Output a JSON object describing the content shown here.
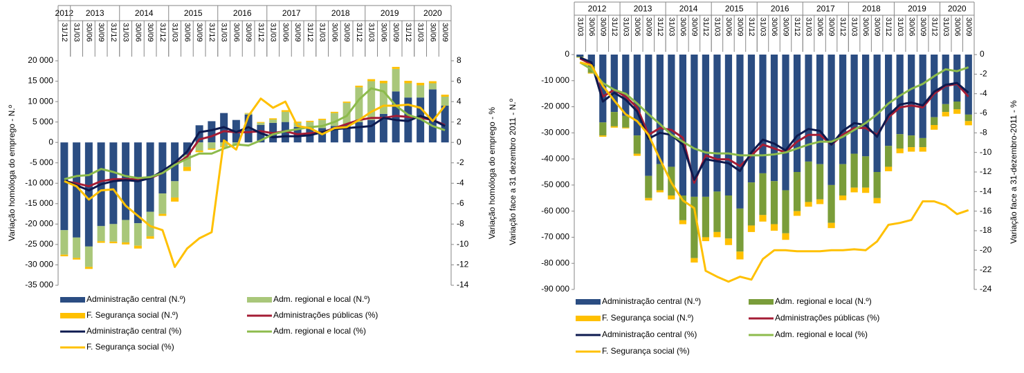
{
  "chart_data": [
    {
      "type": "combo",
      "y_label": "Variação homóloga do emprego - N.º",
      "y2_label": "Variação homóloga do emprego - %",
      "categories": [
        "31/12",
        "31/03",
        "30/06",
        "30/09",
        "31/12",
        "31/03",
        "30/06",
        "30/09",
        "31/12",
        "31/03",
        "30/06",
        "30/09",
        "31/12",
        "31/03",
        "30/06",
        "30/09",
        "31/12",
        "31/03",
        "30/06",
        "30/09",
        "31/12",
        "31/03",
        "30/06",
        "30/09",
        "31/12",
        "31/03",
        "30/06",
        "30/09",
        "31/12",
        "31/03",
        "30/06",
        "30/09"
      ],
      "category_years": [
        "2012",
        "2013",
        null,
        null,
        null,
        "2014",
        null,
        null,
        null,
        "2015",
        null,
        null,
        null,
        "2016",
        null,
        null,
        null,
        "2017",
        null,
        null,
        null,
        "2018",
        null,
        null,
        null,
        "2019",
        null,
        null,
        null,
        "2020",
        null,
        null
      ],
      "ylim": [
        -35000,
        20000
      ],
      "yticks": [
        {
          "value": -35000,
          "label": "-35 000"
        },
        {
          "value": -30000,
          "label": "-30 000"
        },
        {
          "value": -25000,
          "label": "-25 000"
        },
        {
          "value": -20000,
          "label": "-20 000"
        },
        {
          "value": -15000,
          "label": "-15 000"
        },
        {
          "value": -10000,
          "label": "-10 000"
        },
        {
          "value": -5000,
          "label": "-5 000"
        },
        0,
        {
          "value": 5000,
          "label": "5 000"
        },
        {
          "value": 10000,
          "label": "10 000"
        },
        {
          "value": 15000,
          "label": "15 000"
        },
        {
          "value": 20000,
          "label": "20 000"
        }
      ],
      "y2lim": [
        -14,
        8
      ],
      "y2ticks": [
        -14,
        -12,
        -10,
        -8,
        -6,
        -4,
        -2,
        0,
        2,
        4,
        6,
        8
      ],
      "series": [
        {
          "name": "Administração central (N.º)",
          "type": "bar",
          "color": "#2b4d82",
          "values": [
            -21500,
            -23300,
            -25500,
            -20500,
            -20000,
            -19000,
            -19800,
            -17000,
            -12500,
            -9500,
            -3000,
            4200,
            5200,
            7200,
            5500,
            6800,
            4300,
            4800,
            5000,
            3800,
            3500,
            3500,
            4000,
            4500,
            5000,
            5500,
            7000,
            12500,
            11000,
            11000,
            13000,
            9000
          ]
        },
        {
          "name": "Adm. regional e local (N.º)",
          "type": "bar",
          "color": "#a9c77a",
          "values": [
            -6000,
            -5000,
            -5000,
            -3700,
            -4300,
            -5500,
            -5500,
            -6000,
            -5000,
            -4000,
            -3000,
            -2000,
            -1500,
            -1000,
            -500,
            300,
            500,
            800,
            2500,
            1000,
            1500,
            2000,
            3200,
            5200,
            8500,
            9500,
            7500,
            5500,
            3500,
            3000,
            1500,
            2200
          ]
        },
        {
          "name": "F. Segurança social  (N.º)",
          "type": "bar",
          "color": "#ffc000",
          "values": [
            -400,
            -400,
            -500,
            -400,
            -400,
            -500,
            -700,
            -600,
            -500,
            -1000,
            -1000,
            -400,
            -300,
            -200,
            -100,
            100,
            200,
            300,
            400,
            300,
            300,
            300,
            300,
            300,
            400,
            500,
            600,
            500,
            600,
            600,
            500,
            500
          ]
        },
        {
          "name": "Administrações públicas (%)",
          "type": "line",
          "axis": "y2",
          "color": "#a41c34",
          "values": [
            -3.8,
            -4.0,
            -4.3,
            -3.8,
            -3.6,
            -3.6,
            -3.6,
            -3.5,
            -3.0,
            -2.2,
            -1.4,
            0.3,
            0.6,
            1.1,
            1.0,
            1.0,
            1.1,
            0.9,
            1.1,
            0.8,
            0.9,
            1.0,
            1.4,
            1.8,
            2.2,
            2.4,
            2.4,
            2.6,
            2.5,
            2.4,
            2.2,
            1.7
          ]
        },
        {
          "name": "Administração central  (%)",
          "type": "line",
          "axis": "y2",
          "color": "#0d1a4f",
          "values": [
            -3.7,
            -4.2,
            -4.7,
            -4.1,
            -3.8,
            -3.7,
            -3.8,
            -3.5,
            -2.8,
            -2.0,
            -0.9,
            1.0,
            1.2,
            1.5,
            1.0,
            1.5,
            0.9,
            0.5,
            0.6,
            0.6,
            0.7,
            1.0,
            1.3,
            1.4,
            1.5,
            1.6,
            2.4,
            2.2,
            2.1,
            2.6,
            2.2,
            1.6
          ]
        },
        {
          "name": "Adm. regional e local (%)",
          "type": "line",
          "axis": "y2",
          "color": "#8dbb4c",
          "values": [
            -3.6,
            -3.3,
            -3.2,
            -2.6,
            -2.9,
            -3.3,
            -3.5,
            -3.4,
            -3.0,
            -2.2,
            -1.6,
            -1.1,
            -1.1,
            -0.6,
            -0.2,
            -0.3,
            0.2,
            0.8,
            1.1,
            1.3,
            1.5,
            1.6,
            2.0,
            2.6,
            4.2,
            5.3,
            5.0,
            3.6,
            2.7,
            2.3,
            1.6,
            1.2
          ]
        },
        {
          "name": "F. Segurança social  (%)",
          "type": "line",
          "axis": "y2",
          "color": "#ffc000",
          "values": [
            -3.8,
            -4.3,
            -5.6,
            -4.7,
            -4.6,
            -6.2,
            -7.2,
            -8.2,
            -8.6,
            -12.2,
            -10.4,
            -9.4,
            -8.8,
            0.2,
            -0.7,
            2.6,
            4.3,
            3.4,
            4.0,
            1.6,
            1.4,
            0.8,
            1.4,
            1.5,
            2.2,
            3.0,
            3.6,
            3.6,
            3.7,
            3.4,
            2.1,
            3.6
          ]
        }
      ]
    },
    {
      "type": "combo",
      "y_label": "Variação  face a 31 dezembro 2011 - N.º",
      "y2_label": "Variação face a 31-dezembro-2011 - %",
      "categories": [
        "31/03",
        "30/06",
        "30/09",
        "31/12",
        "31/03",
        "30/06",
        "30/09",
        "31/12",
        "31/03",
        "30/06",
        "30/09",
        "31/12",
        "31/03",
        "30/06",
        "30/09",
        "31/12",
        "31/03",
        "30/06",
        "30/09",
        "31/12",
        "31/03",
        "30/06",
        "30/09",
        "31/12",
        "31/03",
        "30/06",
        "30/09",
        "31/12",
        "31/03",
        "30/06",
        "30/09",
        "31/12",
        "31/03",
        "30/06",
        "30/09"
      ],
      "category_years": [
        "2012",
        null,
        null,
        null,
        "2013",
        null,
        null,
        null,
        "2014",
        null,
        null,
        null,
        "2015",
        null,
        null,
        null,
        "2016",
        null,
        null,
        null,
        "2017",
        null,
        null,
        null,
        "2018",
        null,
        null,
        null,
        "2019",
        null,
        null,
        null,
        "2020",
        null,
        null
      ],
      "ylim": [
        -90000,
        0
      ],
      "yticks": [
        {
          "value": -90000,
          "label": "-90 000"
        },
        {
          "value": -80000,
          "label": "-80 000"
        },
        {
          "value": -70000,
          "label": "-70 000"
        },
        {
          "value": -60000,
          "label": "-60 000"
        },
        {
          "value": -50000,
          "label": "-50 000"
        },
        {
          "value": -40000,
          "label": "-40 000"
        },
        {
          "value": -30000,
          "label": "-30 000"
        },
        {
          "value": -20000,
          "label": "-20 000"
        },
        {
          "value": -10000,
          "label": "-10 000"
        },
        0
      ],
      "y2lim": [
        -24,
        0
      ],
      "y2ticks": [
        -24,
        -22,
        -20,
        -18,
        -16,
        -14,
        -12,
        -10,
        -8,
        -6,
        -4,
        -2,
        0
      ],
      "series": [
        {
          "name": "Administração central (N.º)",
          "type": "bar",
          "color": "#2b4d82",
          "values": [
            -800,
            -4500,
            -26000,
            -22000,
            -23500,
            -31000,
            -46500,
            -42000,
            -43000,
            -54000,
            -54500,
            -54500,
            -52500,
            -54000,
            -59000,
            -49000,
            -45500,
            -48500,
            -52000,
            -45000,
            -41000,
            -42000,
            -50000,
            -42000,
            -38000,
            -39000,
            -45000,
            -35000,
            -30500,
            -31000,
            -32000,
            -24000,
            -19000,
            -18000,
            -23000
          ]
        },
        {
          "name": "Adm. regional e local (N.º)",
          "type": "bar",
          "color": "#7a9d3a",
          "values": [
            -300,
            -2500,
            -5000,
            -5500,
            -4500,
            -7000,
            -8500,
            -10000,
            -11000,
            -9500,
            -23500,
            -15500,
            -15500,
            -16500,
            -16500,
            -16500,
            -16000,
            -16500,
            -16500,
            -15000,
            -15500,
            -13500,
            -14500,
            -12000,
            -13000,
            -12000,
            -10000,
            -8000,
            -5500,
            -4500,
            -3500,
            -3000,
            -3000,
            -3000,
            -2500
          ]
        },
        {
          "name": "F. Segurança social  (N.º)",
          "type": "bar",
          "color": "#ffc000",
          "values": [
            -100,
            -300,
            -500,
            -500,
            -300,
            -800,
            -900,
            -800,
            -1500,
            -1500,
            -1700,
            -1500,
            -2000,
            -2500,
            -3000,
            -2500,
            -2500,
            -2500,
            -2500,
            -1800,
            -1800,
            -1800,
            -2000,
            -1800,
            -1800,
            -2000,
            -2000,
            -1700,
            -1800,
            -1700,
            -1700,
            -1800,
            -1700,
            -1700,
            -1600
          ]
        },
        {
          "name": "Administrações públicas (%)",
          "type": "line",
          "axis": "y2",
          "color": "#a41c34",
          "values": [
            -0.4,
            -1.0,
            -4.3,
            -3.6,
            -4.3,
            -5.4,
            -8.2,
            -7.5,
            -7.7,
            -8.5,
            -13.1,
            -10.3,
            -10.7,
            -10.7,
            -11.4,
            -10.3,
            -9.2,
            -9.6,
            -10.0,
            -8.9,
            -8.2,
            -8.2,
            -9.2,
            -8.2,
            -7.5,
            -7.5,
            -8.2,
            -6.4,
            -5.4,
            -5.2,
            -5.4,
            -4.0,
            -3.2,
            -3.0,
            -4.3
          ]
        },
        {
          "name": "Administração central  (%)",
          "type": "line",
          "axis": "y2",
          "color": "#0d1a4f",
          "values": [
            -0.3,
            -0.8,
            -4.8,
            -3.9,
            -4.6,
            -5.8,
            -8.6,
            -8.0,
            -8.2,
            -9.2,
            -12.8,
            -10.7,
            -10.9,
            -11.1,
            -11.9,
            -10.0,
            -8.7,
            -9.1,
            -9.8,
            -8.3,
            -7.6,
            -7.8,
            -9.2,
            -7.8,
            -7.0,
            -7.2,
            -8.4,
            -6.2,
            -5.1,
            -4.9,
            -5.2,
            -3.8,
            -3.1,
            -2.9,
            -3.9
          ]
        },
        {
          "name": "Adm. regional e local (%)",
          "type": "line",
          "axis": "y2",
          "color": "#8dbb4c",
          "values": [
            -0.8,
            -1.5,
            -2.9,
            -3.6,
            -4.0,
            -5.0,
            -6.1,
            -7.1,
            -8.2,
            -8.9,
            -9.6,
            -10.0,
            -10.1,
            -10.1,
            -10.3,
            -10.3,
            -10.3,
            -10.2,
            -10.0,
            -9.6,
            -9.2,
            -8.9,
            -8.9,
            -8.4,
            -7.7,
            -7.0,
            -6.1,
            -5.0,
            -4.2,
            -3.5,
            -3.0,
            -2.2,
            -1.5,
            -1.7,
            -1.3
          ]
        },
        {
          "name": "F. Segurança social  (%)",
          "type": "line",
          "axis": "y2",
          "color": "#ffc000",
          "values": [
            -0.8,
            -1.1,
            -3.2,
            -4.7,
            -6.1,
            -6.8,
            -8.2,
            -10.7,
            -13.1,
            -14.9,
            -15.7,
            -22.1,
            -22.7,
            -23.2,
            -22.7,
            -23.0,
            -20.9,
            -20.0,
            -20.0,
            -20.1,
            -20.1,
            -20.1,
            -20.0,
            -20.0,
            -19.9,
            -20.0,
            -19.1,
            -17.4,
            -17.2,
            -16.9,
            -15.0,
            -15.0,
            -15.4,
            -16.3,
            -15.9
          ]
        }
      ]
    }
  ]
}
